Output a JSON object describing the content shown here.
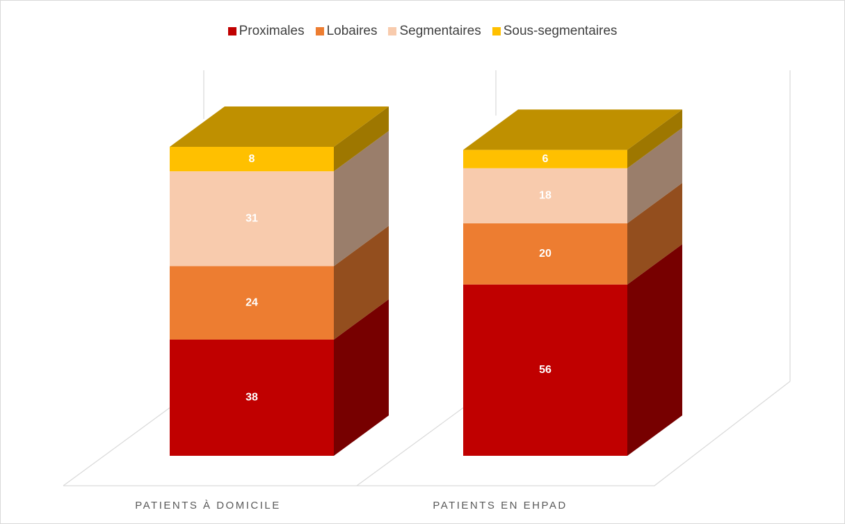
{
  "chart_data": {
    "type": "bar3d_stacked",
    "categories": [
      "PATIENTS À DOMICILE",
      "PATIENTS EN EHPAD"
    ],
    "series": [
      {
        "name": "Proximales",
        "color": "#c00000",
        "values": [
          38,
          56
        ]
      },
      {
        "name": "Lobaires",
        "color": "#ed7d31",
        "values": [
          24,
          20
        ]
      },
      {
        "name": "Segmentaires",
        "color": "#f8cbad",
        "values": [
          31,
          18
        ]
      },
      {
        "name": "Sous-segmentaires",
        "color": "#ffc000",
        "values": [
          8,
          6
        ]
      }
    ],
    "legend": "top"
  }
}
